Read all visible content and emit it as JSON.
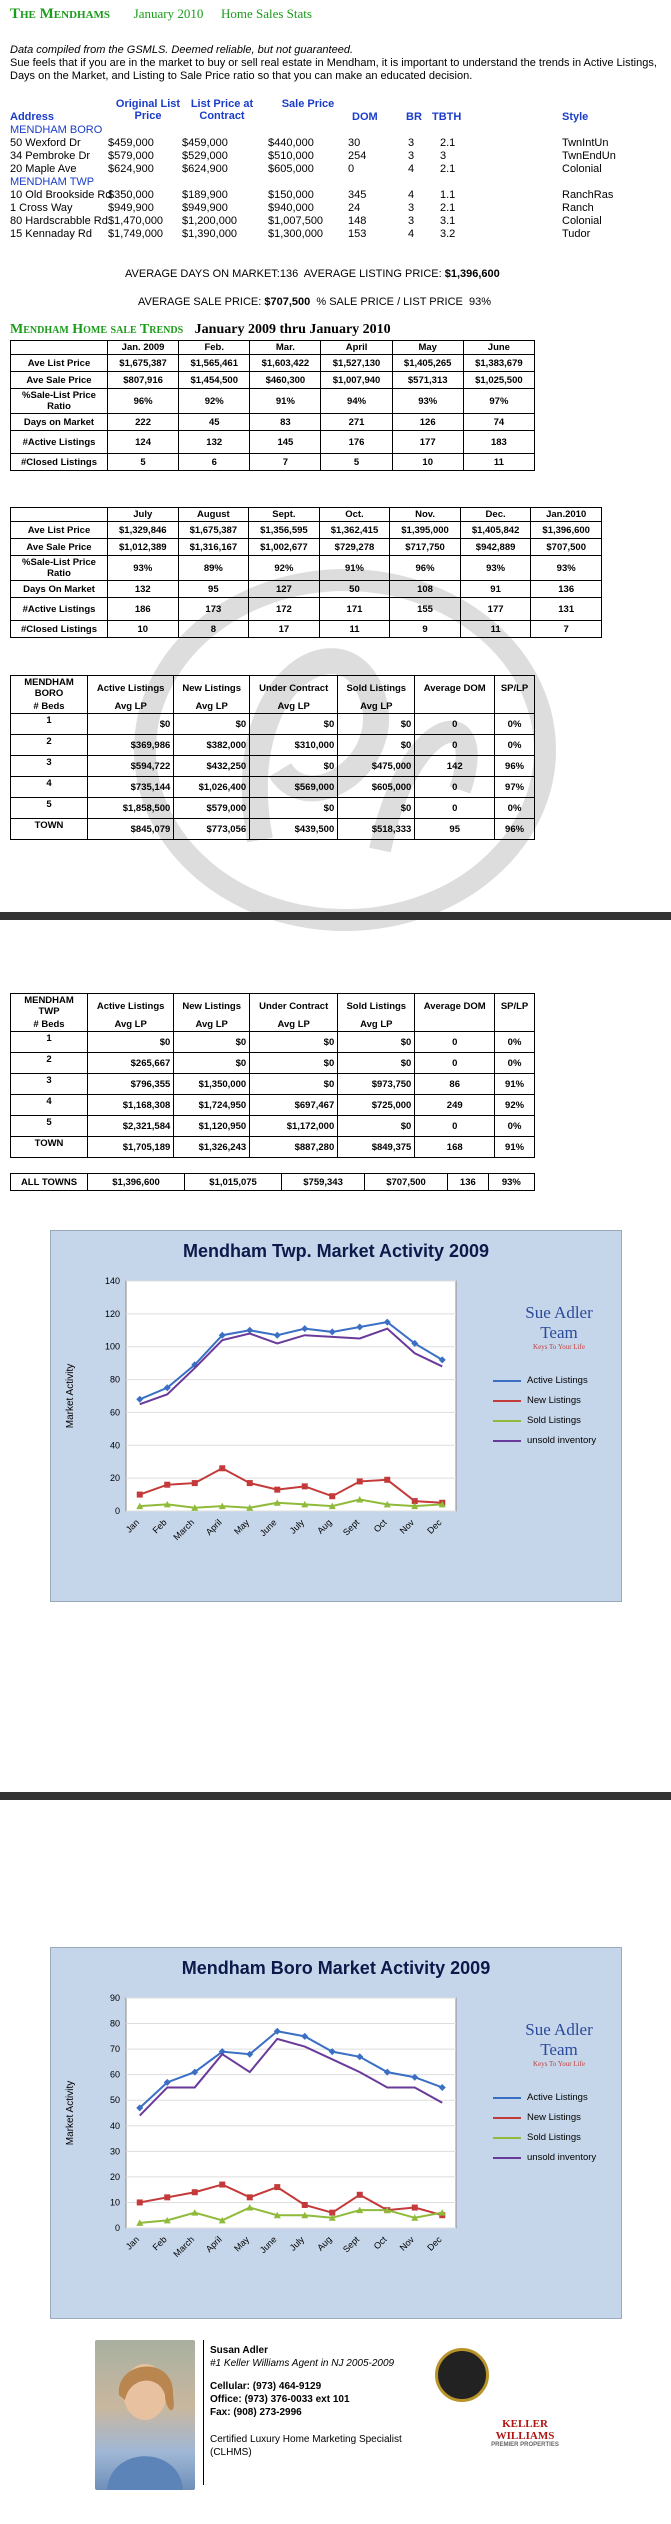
{
  "page1": {
    "brand": "The Mendhams",
    "date": "January 2010",
    "heading": "Home Sales Stats",
    "intro1": "Data compiled from the GSMLS.  Deemed reliable, but not guaranteed.",
    "intro2": "Sue feels that if you are in the market to buy or sell real estate in Mendham, it is important to understand the trends in Active Listings, Days on the Market, and Listing to Sale Price ratio so that you can make an educated decision.",
    "listing_headers": [
      "Address",
      "Original List Price",
      "List Price at Contract",
      "Sale Price",
      "DOM",
      "BR",
      "TBTH",
      "Style"
    ],
    "boro_label": "MENDHAM BORO",
    "boro_rows": [
      [
        "50 Wexford Dr",
        "$459,000",
        "$459,000",
        "$440,000",
        "30",
        "3",
        "2.1",
        "TwnIntUn"
      ],
      [
        "34 Pembroke Dr",
        "$579,000",
        "$529,000",
        "$510,000",
        "254",
        "3",
        "3",
        "TwnEndUn"
      ],
      [
        "20 Maple Ave",
        "$624,900",
        "$624,900",
        "$605,000",
        "0",
        "4",
        "2.1",
        "Colonial"
      ]
    ],
    "twp_label": "MENDHAM TWP",
    "twp_rows": [
      [
        "10 Old Brookside Rd",
        "$350,000",
        "$189,900",
        "$150,000",
        "345",
        "4",
        "1.1",
        "RanchRas"
      ],
      [
        "1 Cross Way",
        "$949,900",
        "$949,900",
        "$940,000",
        "24",
        "3",
        "2.1",
        "Ranch"
      ],
      [
        "80 Hardscrabble Rd",
        "$1,470,000",
        "$1,200,000",
        "$1,007,500",
        "148",
        "3",
        "3.1",
        "Colonial"
      ],
      [
        "15 Kennaday Rd",
        "$1,749,000",
        "$1,390,000",
        "$1,300,000",
        "153",
        "4",
        "3.2",
        "Tudor"
      ]
    ],
    "avg_line1_a": "AVERAGE DAYS ON MARKET:136",
    "avg_line1_b": "AVERAGE LISTING PRICE:",
    "avg_line1_c": "$1,396,600",
    "avg_line2_a": "AVERAGE SALE PRICE:",
    "avg_line2_b": "$707,500",
    "avg_line2_c": "% SALE PRICE / LIST PRICE",
    "avg_line2_d": "93%",
    "trends_title_g": "Mendham Home sale Trends",
    "trends_title_b": "January 2009 thru January 2010",
    "trend_table1": {
      "cols": [
        "Jan. 2009",
        "Feb.",
        "Mar.",
        "April",
        "May",
        "June"
      ],
      "rows": [
        {
          "label": "Ave List Price",
          "vals": [
            "$1,675,387",
            "$1,565,461",
            "$1,603,422",
            "$1,527,130",
            "$1,405,265",
            "$1,383,679"
          ]
        },
        {
          "label": "Ave Sale Price",
          "vals": [
            "$807,916",
            "$1,454,500",
            "$460,300",
            "$1,007,940",
            "$571,313",
            "$1,025,500"
          ]
        },
        {
          "label": "%Sale-List Price Ratio",
          "vals": [
            "96%",
            "92%",
            "91%",
            "94%",
            "93%",
            "97%"
          ]
        },
        {
          "label": "Days on Market",
          "vals": [
            "222",
            "45",
            "83",
            "271",
            "126",
            "74"
          ]
        },
        {
          "label": "#Active Listings",
          "vals": [
            "124",
            "132",
            "145",
            "176",
            "177",
            "183"
          ]
        },
        {
          "label": "#Closed Listings",
          "vals": [
            "5",
            "6",
            "7",
            "5",
            "10",
            "11"
          ]
        }
      ]
    },
    "trend_table2": {
      "cols": [
        "July",
        "August",
        "Sept.",
        "Oct.",
        "Nov.",
        "Dec.",
        "Jan.2010"
      ],
      "rows": [
        {
          "label": "Ave List Price",
          "vals": [
            "$1,329,846",
            "$1,675,387",
            "$1,356,595",
            "$1,362,415",
            "$1,395,000",
            "$1,405,842",
            "$1,396,600"
          ]
        },
        {
          "label": "Ave Sale Price",
          "vals": [
            "$1,012,389",
            "$1,316,167",
            "$1,002,677",
            "$729,278",
            "$717,750",
            "$942,889",
            "$707,500"
          ]
        },
        {
          "label": "%Sale-List Price Ratio",
          "vals": [
            "93%",
            "89%",
            "92%",
            "91%",
            "96%",
            "93%",
            "93%"
          ]
        },
        {
          "label": "Days On Market",
          "vals": [
            "132",
            "95",
            "127",
            "50",
            "108",
            "91",
            "136"
          ]
        },
        {
          "label": "#Active Listings",
          "vals": [
            "186",
            "173",
            "172",
            "171",
            "155",
            "177",
            "131"
          ]
        },
        {
          "label": "#Closed Listings",
          "vals": [
            "10",
            "8",
            "17",
            "11",
            "9",
            "11",
            "7"
          ]
        }
      ]
    },
    "boro_table": {
      "h1": [
        "MENDHAM BORO",
        "Active Listings",
        "New Listings",
        "Under Contract",
        "Sold Listings",
        "Average DOM",
        "SP/LP"
      ],
      "h2": [
        "# Beds",
        "Avg LP",
        "Avg LP",
        "Avg LP",
        "Avg LP",
        "",
        ""
      ],
      "rows": [
        [
          "1",
          "$0",
          "$0",
          "$0",
          "$0",
          "0",
          "0%"
        ],
        [
          "2",
          "$369,986",
          "$382,000",
          "$310,000",
          "$0",
          "0",
          "0%"
        ],
        [
          "3",
          "$594,722",
          "$432,250",
          "$0",
          "$475,000",
          "142",
          "96%"
        ],
        [
          "4",
          "$735,144",
          "$1,026,400",
          "$569,000",
          "$605,000",
          "0",
          "97%"
        ],
        [
          "5",
          "$1,858,500",
          "$579,000",
          "$0",
          "$0",
          "0",
          "0%"
        ],
        [
          "TOWN",
          "$845,079",
          "$773,056",
          "$439,500",
          "$518,333",
          "95",
          "96%"
        ]
      ]
    }
  },
  "page2": {
    "twp_table": {
      "h1": [
        "MENDHAM TWP",
        "Active Listings",
        "New Listings",
        "Under Contract",
        "Sold Listings",
        "Average DOM",
        "SP/LP"
      ],
      "h2": [
        "# Beds",
        "Avg LP",
        "Avg LP",
        "Avg LP",
        "Avg LP",
        "",
        ""
      ],
      "rows": [
        [
          "1",
          "$0",
          "$0",
          "$0",
          "$0",
          "0",
          "0%"
        ],
        [
          "2",
          "$265,667",
          "$0",
          "$0",
          "$0",
          "0",
          "0%"
        ],
        [
          "3",
          "$796,355",
          "$1,350,000",
          "$0",
          "$973,750",
          "86",
          "91%"
        ],
        [
          "4",
          "$1,168,308",
          "$1,724,950",
          "$697,467",
          "$725,000",
          "249",
          "92%"
        ],
        [
          "5",
          "$2,321,584",
          "$1,120,950",
          "$1,172,000",
          "$0",
          "0",
          "0%"
        ],
        [
          "TOWN",
          "$1,705,189",
          "$1,326,243",
          "$887,280",
          "$849,375",
          "168",
          "91%"
        ]
      ]
    },
    "all_towns": [
      "ALL TOWNS",
      "$1,396,600",
      "$1,015,075",
      "$759,343",
      "$707,500",
      "136",
      "93%"
    ]
  },
  "team_logo": "Sue Adler Team",
  "team_tag": "Keys To Your Life",
  "chart_data": [
    {
      "type": "line",
      "title": "Mendham Twp.  Market Activity 2009",
      "ylabel": "Market Activity",
      "xlabel": "",
      "ylim": [
        0,
        140
      ],
      "yticks": [
        0,
        20,
        40,
        60,
        80,
        100,
        120,
        140
      ],
      "categories": [
        "Jan",
        "Feb",
        "March",
        "April",
        "May",
        "June",
        "July",
        "Aug",
        "Sept",
        "Oct",
        "Nov",
        "Dec"
      ],
      "legend": "right",
      "series": [
        {
          "name": "Active Listings",
          "color": "#3a6fc4",
          "marker": "diamond",
          "values": [
            68,
            75,
            89,
            107,
            110,
            107,
            111,
            109,
            112,
            115,
            102,
            92
          ]
        },
        {
          "name": "New Listings",
          "color": "#c43a3a",
          "marker": "square",
          "values": [
            10,
            16,
            17,
            26,
            17,
            13,
            15,
            9,
            18,
            19,
            6,
            5
          ]
        },
        {
          "name": "Sold Listings",
          "color": "#8fba3a",
          "marker": "triangle",
          "values": [
            3,
            4,
            2,
            3,
            2,
            5,
            4,
            3,
            7,
            4,
            3,
            4
          ]
        },
        {
          "name": "unsold inventory",
          "color": "#6a3a9a",
          "marker": "none",
          "values": [
            65,
            71,
            87,
            104,
            108,
            102,
            107,
            106,
            105,
            111,
            96,
            88
          ]
        }
      ]
    },
    {
      "type": "line",
      "title": "Mendham Boro  Market Activity 2009",
      "ylabel": "Market Activity",
      "xlabel": "",
      "ylim": [
        0,
        90
      ],
      "yticks": [
        0,
        10,
        20,
        30,
        40,
        50,
        60,
        70,
        80,
        90
      ],
      "categories": [
        "Jan",
        "Feb",
        "March",
        "April",
        "May",
        "June",
        "July",
        "Aug",
        "Sept",
        "Oct",
        "Nov",
        "Dec"
      ],
      "legend": "right",
      "series": [
        {
          "name": "Active Listings",
          "color": "#3a6fc4",
          "marker": "diamond",
          "values": [
            47,
            57,
            61,
            69,
            68,
            77,
            75,
            69,
            67,
            61,
            59,
            55
          ]
        },
        {
          "name": "New Listings",
          "color": "#c43a3a",
          "marker": "square",
          "values": [
            10,
            12,
            14,
            17,
            12,
            16,
            9,
            6,
            13,
            7,
            8,
            5
          ]
        },
        {
          "name": "Sold Listings",
          "color": "#8fba3a",
          "marker": "triangle",
          "values": [
            2,
            3,
            6,
            3,
            8,
            5,
            5,
            4,
            7,
            7,
            4,
            6
          ]
        },
        {
          "name": "unsold inventory",
          "color": "#6a3a9a",
          "marker": "none",
          "values": [
            44,
            55,
            55,
            68,
            61,
            74,
            71,
            66,
            61,
            55,
            55,
            49
          ]
        }
      ]
    }
  ],
  "card": {
    "name": "Susan Adler",
    "tagline": "#1 Keller Williams Agent in NJ 2005-2009",
    "cell": "Cellular: (973) 464-9129",
    "office": "Office:    (973) 376-0033 ext 101",
    "fax": "Fax:         (908) 273-2996",
    "cert": "Certified Luxury Home Marketing Specialist  (CLHMS)",
    "kw": "KELLER WILLIAMS",
    "kw_sub": "PREMIER PROPERTIES"
  }
}
